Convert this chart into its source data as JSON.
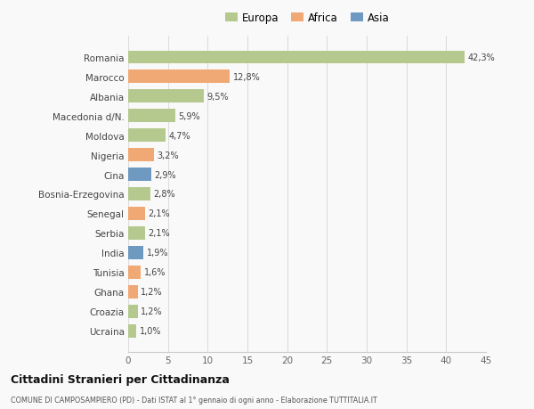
{
  "countries": [
    "Romania",
    "Marocco",
    "Albania",
    "Macedonia d/N.",
    "Moldova",
    "Nigeria",
    "Cina",
    "Bosnia-Erzegovina",
    "Senegal",
    "Serbia",
    "India",
    "Tunisia",
    "Ghana",
    "Croazia",
    "Ucraina"
  ],
  "values": [
    42.3,
    12.8,
    9.5,
    5.9,
    4.7,
    3.2,
    2.9,
    2.8,
    2.1,
    2.1,
    1.9,
    1.6,
    1.2,
    1.2,
    1.0
  ],
  "labels": [
    "42,3%",
    "12,8%",
    "9,5%",
    "5,9%",
    "4,7%",
    "3,2%",
    "2,9%",
    "2,8%",
    "2,1%",
    "2,1%",
    "1,9%",
    "1,6%",
    "1,2%",
    "1,2%",
    "1,0%"
  ],
  "continent": [
    "Europa",
    "Africa",
    "Europa",
    "Europa",
    "Europa",
    "Africa",
    "Asia",
    "Europa",
    "Africa",
    "Europa",
    "Asia",
    "Africa",
    "Africa",
    "Europa",
    "Europa"
  ],
  "colors": {
    "Europa": "#b5c98e",
    "Africa": "#f0a875",
    "Asia": "#6e9ac2"
  },
  "title": "Cittadini Stranieri per Cittadinanza",
  "subtitle": "COMUNE DI CAMPOSAMPIERO (PD) - Dati ISTAT al 1° gennaio di ogni anno - Elaborazione TUTTITALIA.IT",
  "xlim": [
    0,
    45
  ],
  "xticks": [
    0,
    5,
    10,
    15,
    20,
    25,
    30,
    35,
    40,
    45
  ],
  "background_color": "#f9f9f9",
  "grid_color": "#dddddd",
  "bar_height": 0.65
}
